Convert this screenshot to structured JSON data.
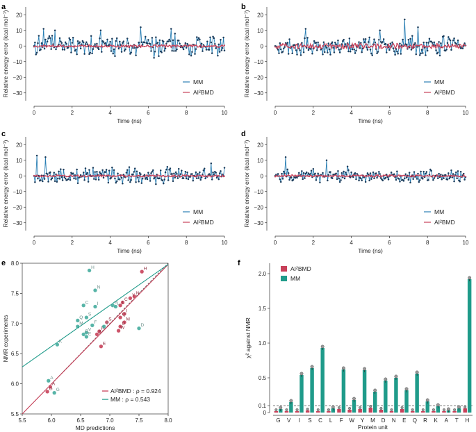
{
  "colors": {
    "mm": "#2a7fb4",
    "mm_dot": "#1d3d5c",
    "ai": "#c8415a",
    "teal": "#1f9b8a",
    "teal_dark": "#1a7a6c",
    "grid": "#555555"
  },
  "chart_data": [
    {
      "panel": "a",
      "type": "line",
      "title": "",
      "xlabel": "Time (ns)",
      "ylabel": "Relative energy error (kcal mol⁻¹)",
      "xlim": [
        0,
        10
      ],
      "ylim": [
        -35,
        25
      ],
      "xticks": [
        "0",
        "2",
        "4",
        "6",
        "8",
        "10"
      ],
      "yticks": [
        "20",
        "10",
        "0",
        "−10",
        "−20",
        "−30"
      ],
      "legend": [
        "MM",
        "AI²BMD"
      ],
      "legend_position": "bottom-right",
      "series": [
        {
          "name": "MM",
          "amplitude": 7,
          "spike_times": [
            0.5,
            1.1,
            3.5,
            5.6,
            7.2
          ],
          "spike_values": [
            11,
            10,
            10,
            12,
            11
          ],
          "seed": 11
        },
        {
          "name": "AI²BMD",
          "amplitude": 0.8,
          "seed": 12
        }
      ]
    },
    {
      "panel": "b",
      "type": "line",
      "xlabel": "Time (ns)",
      "ylabel": "Relative energy error (kcal mol⁻¹)",
      "xlim": [
        0,
        10
      ],
      "ylim": [
        -35,
        25
      ],
      "xticks": [
        "0",
        "2",
        "4",
        "6",
        "8",
        "10"
      ],
      "yticks": [
        "20",
        "10",
        "0",
        "−10",
        "−20",
        "−30"
      ],
      "legend": [
        "MM",
        "AI²BMD"
      ],
      "legend_position": "bottom-right",
      "series": [
        {
          "name": "MM",
          "amplitude": 6,
          "spike_times": [
            1.6,
            5.5,
            6.8,
            7.5
          ],
          "spike_values": [
            11,
            10,
            17,
            12
          ],
          "seed": 21
        },
        {
          "name": "AI²BMD",
          "amplitude": 1.6,
          "seed": 22
        }
      ]
    },
    {
      "panel": "c",
      "type": "line",
      "xlabel": "Time (ns)",
      "ylabel": "Relative energy error (kcal mol⁻¹)",
      "xlim": [
        0,
        10
      ],
      "ylim": [
        -35,
        25
      ],
      "xticks": [
        "0",
        "2",
        "4",
        "6",
        "8",
        "10"
      ],
      "yticks": [
        "20",
        "10",
        "0",
        "−10",
        "−20",
        "−30"
      ],
      "legend": [
        "MM",
        "AI²BMD"
      ],
      "legend_position": "bottom-right",
      "series": [
        {
          "name": "MM",
          "amplitude": 5,
          "spike_times": [
            0.15,
            0.6,
            9.3
          ],
          "spike_values": [
            13,
            12,
            8
          ],
          "seed": 31
        },
        {
          "name": "AI²BMD",
          "amplitude": 0.6,
          "seed": 32
        }
      ]
    },
    {
      "panel": "d",
      "type": "line",
      "xlabel": "Time (ns)",
      "ylabel": "Relative energy error (kcal mol⁻¹)",
      "xlim": [
        0,
        10
      ],
      "ylim": [
        -35,
        25
      ],
      "xticks": [
        "0",
        "2",
        "4",
        "6",
        "8",
        "10"
      ],
      "yticks": [
        "20",
        "10",
        "0",
        "−10",
        "−20",
        "−30"
      ],
      "legend": [
        "MM",
        "AI²BMD"
      ],
      "legend_position": "bottom-right",
      "series": [
        {
          "name": "MM",
          "amplitude": 4,
          "spike_times": [
            0.55,
            2.7,
            3.8
          ],
          "spike_values": [
            12,
            10,
            6
          ],
          "seed": 41
        },
        {
          "name": "AI²BMD",
          "amplitude": 0.6,
          "seed": 42
        }
      ]
    },
    {
      "panel": "e",
      "type": "scatter",
      "xlabel": "MD predictions",
      "ylabel": "NMR experiments",
      "xlim": [
        5.5,
        8.0
      ],
      "ylim": [
        5.5,
        8.0
      ],
      "xticks": [
        "5.5",
        "6.0",
        "6.5",
        "7.0",
        "7.5",
        "8.0"
      ],
      "yticks": [
        "5.5",
        "6.0",
        "6.5",
        "7.0",
        "7.5",
        "8.0"
      ],
      "legend": [
        "AI²BMD : ρ = 0.924",
        "MM : ρ = 0.543"
      ],
      "legend_position": "bottom-right",
      "series": [
        {
          "name": "AI²BMD",
          "fit": [
            [
              5.5,
              5.5
            ],
            [
              8.0,
              7.98
            ]
          ],
          "points": [
            [
              7.55,
              7.86,
              "H"
            ],
            [
              7.42,
              7.45,
              "N"
            ],
            [
              7.35,
              7.42,
              "Y"
            ],
            [
              7.22,
              7.35,
              "C"
            ],
            [
              7.18,
              7.3,
              "L"
            ],
            [
              7.25,
              7.16,
              "I"
            ],
            [
              7.18,
              7.1,
              "Q"
            ],
            [
              7.25,
              7.02,
              "M"
            ],
            [
              6.95,
              7.02,
              "S"
            ],
            [
              7.18,
              6.95,
              "D"
            ],
            [
              7.15,
              6.88,
              "W"
            ],
            [
              6.82,
              6.87,
              "R"
            ],
            [
              6.78,
              6.82,
              "K"
            ],
            [
              6.85,
              6.62,
              "E"
            ],
            [
              5.98,
              5.95,
              "A"
            ],
            [
              5.93,
              5.87,
              "G"
            ]
          ]
        },
        {
          "name": "MM",
          "fit": [
            [
              5.5,
              6.28
            ],
            [
              8.0,
              7.98
            ]
          ],
          "points": [
            [
              6.65,
              7.88,
              "H"
            ],
            [
              6.75,
              7.55,
              "N"
            ],
            [
              6.55,
              7.3,
              "C"
            ],
            [
              6.75,
              7.28,
              "I"
            ],
            [
              7.05,
              7.3,
              "Y"
            ],
            [
              7.1,
              7.28,
              "L"
            ],
            [
              6.6,
              7.1,
              "S"
            ],
            [
              6.45,
              7.05,
              "Q"
            ],
            [
              6.45,
              6.95,
              "M"
            ],
            [
              6.7,
              6.97,
              "F"
            ],
            [
              6.9,
              6.95,
              "T"
            ],
            [
              7.5,
              6.92,
              "D"
            ],
            [
              6.6,
              6.85,
              "V"
            ],
            [
              6.55,
              6.82,
              "R"
            ],
            [
              6.6,
              6.78,
              "E"
            ],
            [
              6.1,
              6.65,
              "K"
            ],
            [
              5.95,
              6.05,
              "A"
            ],
            [
              6.05,
              5.85,
              "G"
            ]
          ]
        }
      ]
    },
    {
      "panel": "f",
      "type": "bar",
      "xlabel": "Protein unit",
      "ylabel": "χ² against NMR",
      "ylim": [
        0,
        2.15
      ],
      "yticks": [
        "0",
        "0.1",
        "0.5",
        "1.0",
        "1.5",
        "2.0"
      ],
      "categories": [
        "G",
        "V",
        "I",
        "S",
        "C",
        "L",
        "F",
        "W",
        "Y",
        "M",
        "D",
        "N",
        "E",
        "Q",
        "R",
        "K",
        "A",
        "T",
        "H"
      ],
      "reference_line": 0.1,
      "legend": [
        "AI²BMD",
        "MM"
      ],
      "legend_position": "top-left",
      "series": [
        {
          "name": "AI²BMD",
          "values": [
            0.02,
            0.02,
            0.02,
            0.03,
            0.02,
            0.02,
            0.05,
            0.04,
            0.05,
            0.07,
            0.04,
            0.02,
            0.05,
            0.02,
            0.02,
            0.02,
            0.02,
            0.02,
            0.06
          ]
        },
        {
          "name": "MM",
          "values": [
            0.05,
            0.15,
            0.54,
            0.64,
            0.93,
            0.06,
            0.62,
            0.18,
            0.61,
            0.3,
            0.46,
            0.5,
            0.32,
            0.56,
            0.16,
            0.09,
            0.03,
            0.06,
            1.92
          ]
        }
      ]
    }
  ],
  "panel_labels": [
    "a",
    "b",
    "c",
    "d",
    "e",
    "f"
  ]
}
